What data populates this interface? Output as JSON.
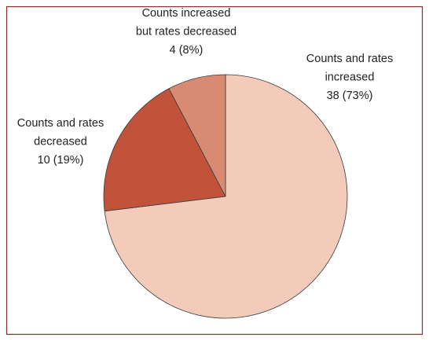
{
  "chart_data": {
    "type": "pie",
    "categories": [
      [
        "Counts and rates",
        "increased"
      ],
      [
        "Counts and rates",
        "decreased"
      ],
      [
        "Counts increased",
        "but rates decreased"
      ]
    ],
    "values": [
      38,
      10,
      4
    ],
    "value_labels": [
      "38 (73%)",
      "10 (19%)",
      "4 (8%)"
    ],
    "colors": [
      "#f2cbbb",
      "#c0533a",
      "#d98a73"
    ]
  }
}
